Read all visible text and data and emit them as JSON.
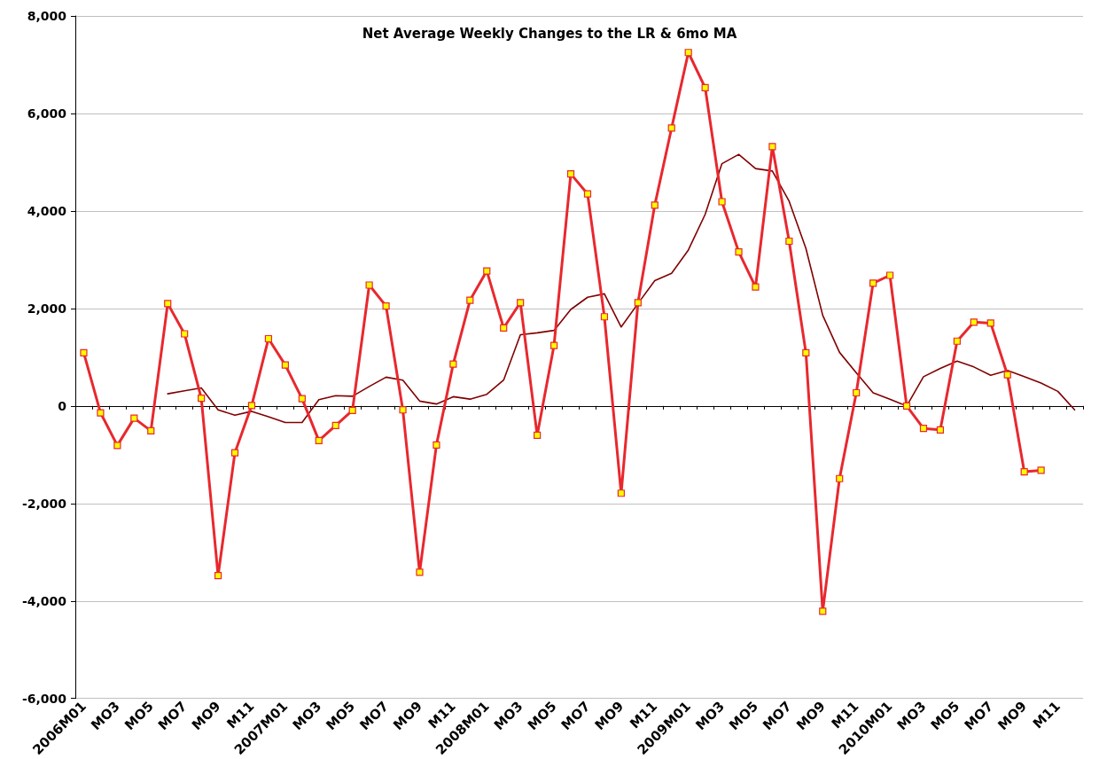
{
  "chart_data": {
    "type": "line",
    "title": "Net Average Weekly Changes to the LR & 6mo MA",
    "categories": [
      "2006M01",
      null,
      "MO3",
      null,
      "MO5",
      null,
      "MO7",
      null,
      "MO9",
      null,
      "M11",
      null,
      "2007M01",
      null,
      "MO3",
      null,
      "MO5",
      null,
      "MO7",
      null,
      "MO9",
      null,
      "M11",
      null,
      "2008M01",
      null,
      "MO3",
      null,
      "MO5",
      null,
      "MO7",
      null,
      "MO9",
      null,
      "M11",
      null,
      "2009M01",
      null,
      "MO3",
      null,
      "MO5",
      null,
      "MO7",
      null,
      "MO9",
      null,
      "M11",
      null,
      "2010M01",
      null,
      "MO3",
      null,
      "MO5",
      null,
      "MO7",
      null,
      "MO9",
      null,
      "M11",
      null
    ],
    "series": [
      {
        "color": "#e8282e",
        "marker": "square",
        "values": [
          1090,
          -140,
          -810,
          -250,
          -510,
          2100,
          1480,
          160,
          -3480,
          -960,
          10,
          1380,
          840,
          150,
          -710,
          -400,
          -90,
          2480,
          2050,
          -80,
          -3410,
          -800,
          860,
          2170,
          2770,
          1600,
          2120,
          -600,
          1240,
          4760,
          4350,
          1830,
          -1790,
          2120,
          4120,
          5700,
          7250,
          6530,
          4190,
          3160,
          2440,
          5320,
          3380,
          1090,
          -4210,
          -1490,
          270,
          2520,
          2680,
          0,
          -460,
          -490,
          1330,
          1720,
          1700,
          640,
          -1350,
          -1320,
          null,
          null
        ]
      },
      {
        "color": "#800000",
        "marker": "none",
        "values": [
          null,
          null,
          null,
          null,
          null,
          250,
          310,
          370,
          -80,
          -190,
          -110,
          -220,
          -340,
          -340,
          130,
          210,
          200,
          400,
          590,
          530,
          100,
          40,
          190,
          140,
          240,
          530,
          1460,
          1500,
          1550,
          1980,
          2230,
          2300,
          1620,
          2100,
          2570,
          2720,
          3200,
          3930,
          4970,
          5160,
          4870,
          4820,
          4200,
          3230,
          1860,
          1100,
          680,
          270,
          140,
          0,
          600,
          770,
          920,
          800,
          630,
          730,
          600,
          470,
          300,
          -80
        ]
      }
    ],
    "ylim": [
      -6000,
      8000
    ],
    "yticks": [
      {
        "value": -6000,
        "label": "-6,000"
      },
      {
        "value": -4000,
        "label": "-4,000"
      },
      {
        "value": -2000,
        "label": "-2,000"
      },
      0,
      {
        "value": 2000,
        "label": "2,000"
      },
      {
        "value": 4000,
        "label": "4,000"
      },
      {
        "value": 6000,
        "label": "6,000"
      },
      {
        "value": 8000,
        "label": "8,000"
      }
    ],
    "grid": "y"
  }
}
